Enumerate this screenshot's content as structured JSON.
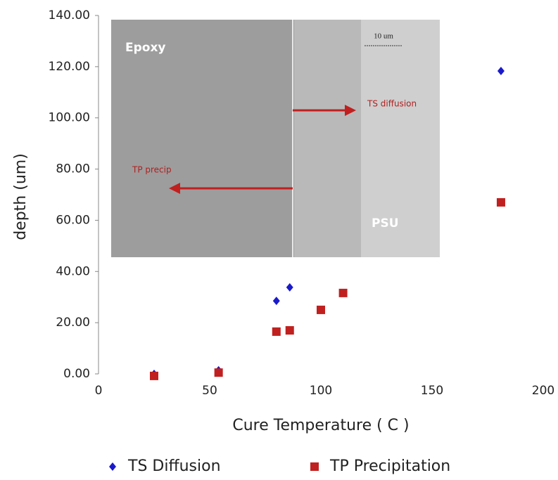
{
  "chart_data": {
    "type": "scatter",
    "x_label": "Cure Temperature ( C )",
    "y_label": "depth (um)",
    "xlim": [
      0,
      200
    ],
    "xticks": [
      0,
      50,
      100,
      150,
      200
    ],
    "ylim": [
      0,
      140
    ],
    "yticks": [
      {
        "value": 0,
        "label": "0.00"
      },
      {
        "value": 20,
        "label": "20.00"
      },
      {
        "value": 40,
        "label": "40.00"
      },
      {
        "value": 60,
        "label": "60.00"
      },
      {
        "value": 80,
        "label": "80.00"
      },
      {
        "value": 100,
        "label": "100.00"
      },
      {
        "value": 120,
        "label": "120.00"
      },
      {
        "value": 140,
        "label": "140.00"
      }
    ],
    "legend": "bottom",
    "series": [
      {
        "name": "TS Diffusion",
        "color": "#1a1acc",
        "marker": "diamond",
        "x": [
          25,
          54,
          80,
          86,
          181
        ],
        "values": [
          0,
          1.4,
          28.5,
          33.8,
          118.3
        ]
      },
      {
        "name": "TP Precipitation",
        "color": "#c0201f",
        "marker": "square",
        "x": [
          25,
          54,
          80,
          86,
          100,
          110,
          181
        ],
        "values": [
          -0.8,
          0.5,
          16.5,
          17,
          25,
          31.6,
          67
        ]
      }
    ],
    "inset_labels": [
      "Epoxy",
      "PSU",
      "TS diffusion",
      "TP precip",
      "10 um"
    ]
  }
}
